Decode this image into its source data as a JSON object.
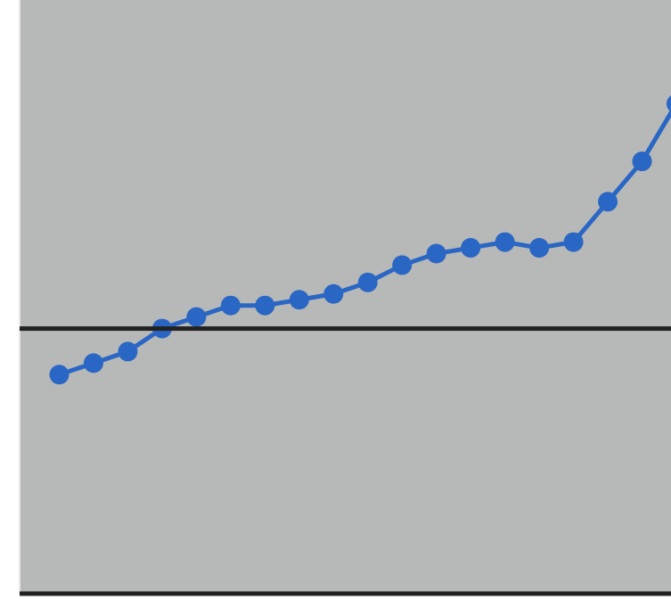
{
  "chart_data": {
    "type": "line",
    "title": "",
    "xlabel": "",
    "ylabel": "",
    "grid": false,
    "legend": "none",
    "x": [
      1,
      2,
      3,
      4,
      5,
      6,
      7,
      8,
      9,
      10,
      11,
      12,
      13,
      14,
      15,
      16,
      17,
      18,
      19
    ],
    "series": [
      {
        "color": "#2a66c4",
        "marker": "circle",
        "values": [
          -0.08,
          -0.06,
          -0.04,
          0.0,
          0.02,
          0.04,
          0.04,
          0.05,
          0.06,
          0.08,
          0.11,
          0.13,
          0.14,
          0.15,
          0.14,
          0.15,
          0.22,
          0.29,
          0.39
        ]
      }
    ],
    "reference_line": {
      "y": 0,
      "color": "#222222"
    },
    "xlim": [
      0,
      19
    ],
    "ylim": [
      -0.46,
      0.57
    ],
    "colors": {
      "plot_background": "#b7b9b8",
      "axis": "#222222",
      "series": "#2a66c4"
    }
  }
}
